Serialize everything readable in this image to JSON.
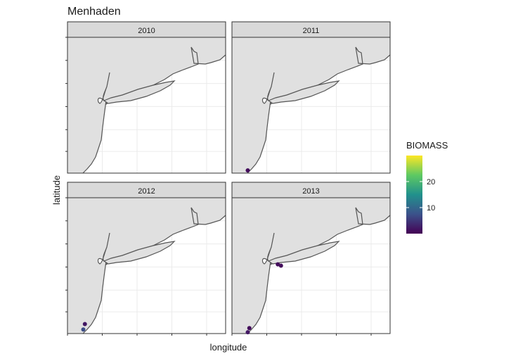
{
  "chart_data": {
    "type": "scatter",
    "title": "Menhaden",
    "xlabel": "longitude",
    "ylabel": "latitude",
    "grid": true,
    "legend_position": "right",
    "colorbar": {
      "title": "BIOMASS",
      "ticks": [
        10,
        20
      ],
      "range": [
        0,
        30
      ],
      "colors": [
        "#440154",
        "#3b528b",
        "#21918c",
        "#5ec962",
        "#fde725"
      ]
    },
    "facets": [
      {
        "label": "2010",
        "points": []
      },
      {
        "label": "2011",
        "points": [
          {
            "x": 0.1,
            "y": 0.02,
            "biomass": 1
          }
        ]
      },
      {
        "label": "2012",
        "points": [
          {
            "x": 0.11,
            "y": 0.07,
            "biomass": 2
          },
          {
            "x": 0.1,
            "y": 0.03,
            "biomass": 7
          }
        ]
      },
      {
        "label": "2013",
        "points": [
          {
            "x": 0.29,
            "y": 0.51,
            "biomass": 1
          },
          {
            "x": 0.31,
            "y": 0.5,
            "biomass": 1
          },
          {
            "x": 0.11,
            "y": 0.04,
            "biomass": 1
          },
          {
            "x": 0.1,
            "y": 0.01,
            "biomass": 2
          }
        ]
      }
    ]
  }
}
